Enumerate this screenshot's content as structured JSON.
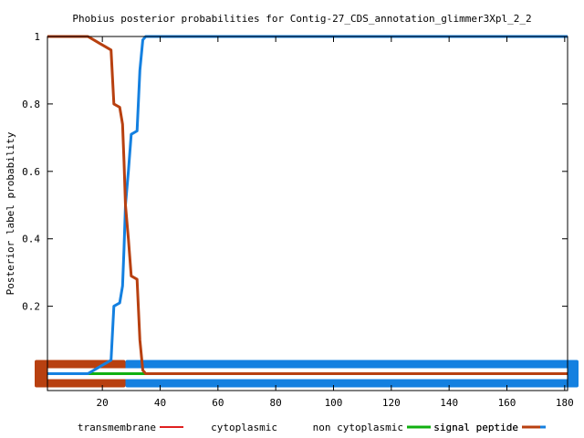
{
  "chart_data": {
    "type": "line",
    "title": "Phobius posterior probabilities for Contig-27_CDS_annotation_glimmer3Xpl_2_2",
    "xlabel": "",
    "ylabel": "Posterior label probability",
    "xlim": [
      1,
      181
    ],
    "ylim": [
      -0.05,
      1
    ],
    "x_ticks": [
      20,
      40,
      60,
      80,
      100,
      120,
      140,
      160,
      180
    ],
    "y_ticks": [
      0.2,
      0.4,
      0.6,
      0.8,
      1
    ],
    "x_tick_labels": [
      "20",
      "40",
      "60",
      "80",
      "100",
      "120",
      "140",
      "160",
      "180"
    ],
    "y_tick_labels": [
      "0.2",
      "0.4",
      "0.6",
      "0.8",
      "1"
    ],
    "grid": false,
    "legend": "bottom",
    "series": [
      {
        "name": "transmembrane",
        "color": "#e02020",
        "points": [
          [
            1,
            0
          ],
          [
            181,
            0
          ]
        ]
      },
      {
        "name": "cytoplasmic",
        "color": "#ffffff",
        "points": []
      },
      {
        "name": "non cytoplasmic",
        "color": "#10b010",
        "points": [
          [
            1,
            0
          ],
          [
            20,
            0
          ],
          [
            28,
            0
          ],
          [
            35,
            0
          ]
        ]
      },
      {
        "name": "signal peptide",
        "color": "#1480e0",
        "points": [
          [
            1,
            0
          ],
          [
            15,
            0
          ],
          [
            17,
            0.01
          ],
          [
            19,
            0.02
          ],
          [
            21,
            0.03
          ],
          [
            23,
            0.04
          ],
          [
            24,
            0.2
          ],
          [
            26,
            0.21
          ],
          [
            27,
            0.26
          ],
          [
            27.5,
            0.37
          ],
          [
            28,
            0.5
          ],
          [
            29,
            0.6
          ],
          [
            30,
            0.71
          ],
          [
            32,
            0.72
          ],
          [
            33,
            0.9
          ],
          [
            34,
            0.99
          ],
          [
            35,
            1
          ],
          [
            40,
            1
          ],
          [
            181,
            1
          ]
        ]
      },
      {
        "name": "signal peptide",
        "color": "#b84010",
        "points": [
          [
            1,
            1
          ],
          [
            15,
            1
          ],
          [
            17,
            0.99
          ],
          [
            19,
            0.98
          ],
          [
            21,
            0.97
          ],
          [
            23,
            0.96
          ],
          [
            24,
            0.8
          ],
          [
            26,
            0.79
          ],
          [
            27,
            0.74
          ],
          [
            27.5,
            0.63
          ],
          [
            28,
            0.5
          ],
          [
            29,
            0.4
          ],
          [
            30,
            0.29
          ],
          [
            32,
            0.28
          ],
          [
            33,
            0.1
          ],
          [
            34,
            0.01
          ],
          [
            35,
            0
          ],
          [
            40,
            0
          ],
          [
            181,
            0
          ]
        ]
      }
    ],
    "bands": [
      {
        "color": "#b84010",
        "x_start": 1,
        "x_end": 28
      },
      {
        "color": "#1480e0",
        "x_start": 28,
        "x_end": 181
      }
    ]
  }
}
